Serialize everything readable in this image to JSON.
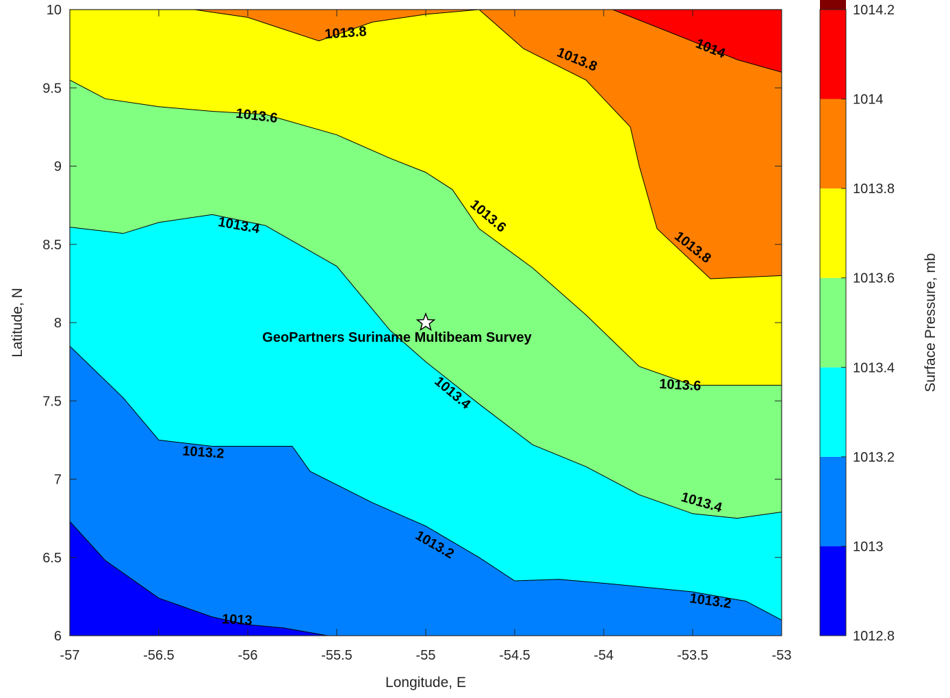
{
  "chart_data": {
    "type": "contour-filled",
    "xlabel": "Longitude, E",
    "ylabel": "Latitude, N",
    "xlim": [
      -57,
      -53
    ],
    "ylim": [
      6,
      10
    ],
    "x_ticks": [
      "-57",
      "-56.5",
      "-56",
      "-55.5",
      "-55",
      "-54.5",
      "-54",
      "-53.5",
      "-53"
    ],
    "y_ticks": [
      "6",
      "6.5",
      "7",
      "7.5",
      "8",
      "8.5",
      "9",
      "9.5",
      "10"
    ],
    "colorbar": {
      "label": "Surface Pressure, mb",
      "range": [
        1012.8,
        1014.2
      ],
      "ticks": [
        "1012.8",
        "1013",
        "1013.2",
        "1013.4",
        "1013.6",
        "1013.8",
        "1014",
        "1014.2"
      ],
      "colors": [
        "#0000ff",
        "#0080ff",
        "#00ffff",
        "#80ff80",
        "#ffff00",
        "#ff8000",
        "#ff0000",
        "#800000"
      ]
    },
    "levels": [
      {
        "value": 1013,
        "line": [
          [
            -57,
            6.73
          ],
          [
            -56.8,
            6.48
          ],
          [
            -56.5,
            6.24
          ],
          [
            -56.2,
            6.12
          ],
          [
            -56,
            6.07
          ],
          [
            -55.8,
            6.05
          ],
          [
            -55.5,
            5.99
          ]
        ]
      },
      {
        "value": 1013.2,
        "line": [
          [
            -57,
            7.85
          ],
          [
            -56.7,
            7.52
          ],
          [
            -56.5,
            7.25
          ],
          [
            -56.2,
            7.21
          ],
          [
            -55.75,
            7.21
          ],
          [
            -55.65,
            7.05
          ],
          [
            -55.3,
            6.85
          ],
          [
            -55,
            6.7
          ],
          [
            -54.7,
            6.5
          ],
          [
            -54.5,
            6.35
          ],
          [
            -54.25,
            6.36
          ],
          [
            -53.95,
            6.33
          ],
          [
            -53.5,
            6.28
          ],
          [
            -53.2,
            6.22
          ],
          [
            -53,
            6.1
          ]
        ]
      },
      {
        "value": 1013.4,
        "line": [
          [
            -57,
            8.61
          ],
          [
            -56.7,
            8.57
          ],
          [
            -56.5,
            8.64
          ],
          [
            -56.2,
            8.69
          ],
          [
            -55.9,
            8.62
          ],
          [
            -55.5,
            8.36
          ],
          [
            -55.2,
            7.95
          ],
          [
            -55,
            7.75
          ],
          [
            -54.7,
            7.48
          ],
          [
            -54.4,
            7.22
          ],
          [
            -54.1,
            7.08
          ],
          [
            -53.8,
            6.9
          ],
          [
            -53.5,
            6.78
          ],
          [
            -53.25,
            6.75
          ],
          [
            -53,
            6.79
          ]
        ]
      },
      {
        "value": 1013.6,
        "line": [
          [
            -57,
            9.55
          ],
          [
            -56.8,
            9.43
          ],
          [
            -56.5,
            9.38
          ],
          [
            -56.2,
            9.35
          ],
          [
            -55.9,
            9.33
          ],
          [
            -55.5,
            9.2
          ],
          [
            -55.2,
            9.05
          ],
          [
            -55,
            8.96
          ],
          [
            -54.85,
            8.85
          ],
          [
            -54.7,
            8.6
          ],
          [
            -54.4,
            8.35
          ],
          [
            -54.1,
            8.05
          ],
          [
            -53.8,
            7.72
          ],
          [
            -53.5,
            7.6
          ],
          [
            -53,
            7.6
          ]
        ]
      },
      {
        "value": 1013.8,
        "line": [
          [
            -56.3,
            10
          ],
          [
            -56,
            9.95
          ],
          [
            -55.6,
            9.8
          ],
          [
            -55.3,
            9.92
          ],
          [
            -55,
            9.97
          ],
          [
            -54.7,
            10
          ]
        ]
      },
      {
        "value": 1013.8,
        "line": [
          [
            -54.7,
            10
          ],
          [
            -54.45,
            9.75
          ],
          [
            -54.1,
            9.55
          ],
          [
            -53.85,
            9.25
          ],
          [
            -53.8,
            9
          ],
          [
            -53.7,
            8.6
          ],
          [
            -53.4,
            8.28
          ],
          [
            -53,
            8.3
          ]
        ]
      },
      {
        "value": 1014,
        "line": [
          [
            -53.95,
            10
          ],
          [
            -53.55,
            9.82
          ],
          [
            -53.25,
            9.68
          ],
          [
            -53,
            9.6
          ]
        ]
      }
    ],
    "contour_labels": [
      {
        "text": "1013.8",
        "x": -55.45,
        "y": 9.85,
        "angle": -4
      },
      {
        "text": "1013.8",
        "x": -54.15,
        "y": 9.68,
        "angle": 22
      },
      {
        "text": "1014",
        "x": -53.4,
        "y": 9.75,
        "angle": 22
      },
      {
        "text": "1013.6",
        "x": -55.95,
        "y": 9.32,
        "angle": 7
      },
      {
        "text": "1013.6",
        "x": -54.65,
        "y": 8.68,
        "angle": 40
      },
      {
        "text": "1013.8",
        "x": -53.5,
        "y": 8.48,
        "angle": 38
      },
      {
        "text": "1013.4",
        "x": -56.05,
        "y": 8.62,
        "angle": 10
      },
      {
        "text": "1013.4",
        "x": -54.85,
        "y": 7.55,
        "angle": 40
      },
      {
        "text": "1013.6",
        "x": -53.57,
        "y": 7.6,
        "angle": 3
      },
      {
        "text": "1013.2",
        "x": -56.25,
        "y": 7.17,
        "angle": 4
      },
      {
        "text": "1013.4",
        "x": -53.45,
        "y": 6.85,
        "angle": 16
      },
      {
        "text": "1013.2",
        "x": -54.95,
        "y": 6.58,
        "angle": 30
      },
      {
        "text": "1013.2",
        "x": -53.4,
        "y": 6.22,
        "angle": 8
      },
      {
        "text": "1013",
        "x": -56.06,
        "y": 6.1,
        "angle": 3
      }
    ],
    "annotation": {
      "marker": "star",
      "x": -55,
      "y": 8,
      "text": "GeoPartners Suriname Multibeam Survey"
    }
  }
}
